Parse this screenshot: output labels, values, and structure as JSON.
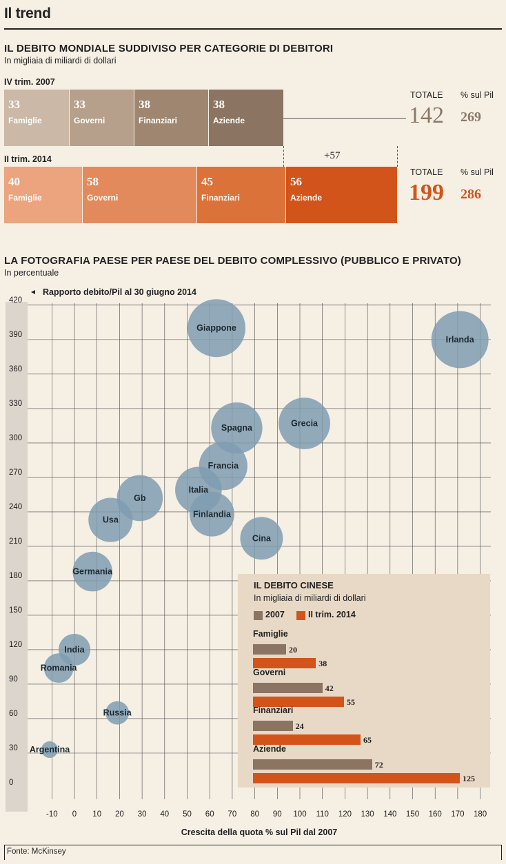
{
  "header": {
    "title": "Il trend"
  },
  "section1": {
    "title": "IL DEBITO MONDIALE SUDDIVISO PER CATEGORIE DI DEBITORI",
    "subtitle": "In migliaia di miliardi di dollari",
    "total_label": "TOTALE",
    "pil_label": "% sul Pil",
    "delta": "+57",
    "rows": [
      {
        "period": "IV trim. 2007",
        "total": "142",
        "pil": "269",
        "total_color": "#8b7868",
        "segments": [
          {
            "value": "33",
            "label": "Famiglie",
            "color": "#cbb8a6"
          },
          {
            "value": "33",
            "label": "Governi",
            "color": "#b7a08b"
          },
          {
            "value": "38",
            "label": "Finanziari",
            "color": "#9e8670"
          },
          {
            "value": "38",
            "label": "Aziende",
            "color": "#8b7462"
          }
        ]
      },
      {
        "period": "II trim. 2014",
        "total": "199",
        "pil": "286",
        "total_color": "#d2541a",
        "segments": [
          {
            "value": "40",
            "label": "Famiglie",
            "color": "#eba47e"
          },
          {
            "value": "58",
            "label": "Governi",
            "color": "#e38a5c"
          },
          {
            "value": "45",
            "label": "Finanziari",
            "color": "#db7239"
          },
          {
            "value": "56",
            "label": "Aziende",
            "color": "#d2541a"
          }
        ]
      }
    ]
  },
  "section2": {
    "title": "LA FOTOGRAFIA PAESE PER PAESE DEL DEBITO COMPLESSIVO (PUBBLICO E PRIVATO)",
    "subtitle": "In percentuale",
    "y_axis_note": "Rapporto debito/Pil al 30 giugno 2014"
  },
  "chart_data": [
    {
      "type": "scatter",
      "title": "LA FOTOGRAFIA PAESE PER PAESE DEL DEBITO COMPLESSIVO (PUBBLICO E PRIVATO)",
      "xlabel": "Crescita della quota % sul Pil dal 2007",
      "ylabel": "Rapporto debito/Pil al 30 giugno 2014",
      "xlim": [
        -15,
        185
      ],
      "ylim": [
        0,
        420
      ],
      "x_ticks": [
        -10,
        0,
        10,
        20,
        30,
        40,
        50,
        60,
        70,
        80,
        90,
        100,
        110,
        120,
        130,
        140,
        150,
        160,
        170,
        180
      ],
      "y_ticks": [
        0,
        30,
        60,
        90,
        120,
        150,
        180,
        210,
        240,
        270,
        300,
        330,
        360,
        390,
        420
      ],
      "bubble_color": "#7f9cb0",
      "points": [
        {
          "name": "Giappone",
          "x": 63,
          "y": 400,
          "size": 400
        },
        {
          "name": "Irlanda",
          "x": 171,
          "y": 390,
          "size": 390
        },
        {
          "name": "Grecia",
          "x": 102,
          "y": 317,
          "size": 317
        },
        {
          "name": "Spagna",
          "x": 72,
          "y": 313,
          "size": 313
        },
        {
          "name": "Francia",
          "x": 66,
          "y": 280,
          "size": 280
        },
        {
          "name": "Italia",
          "x": 55,
          "y": 259,
          "size": 259
        },
        {
          "name": "Finlandia",
          "x": 61,
          "y": 238,
          "size": 238
        },
        {
          "name": "Gb",
          "x": 29,
          "y": 252,
          "size": 252
        },
        {
          "name": "Usa",
          "x": 16,
          "y": 233,
          "size": 233
        },
        {
          "name": "Cina",
          "x": 83,
          "y": 217,
          "size": 217
        },
        {
          "name": "Germania",
          "x": 8,
          "y": 188,
          "size": 188
        },
        {
          "name": "India",
          "x": 0,
          "y": 120,
          "size": 120
        },
        {
          "name": "Romania",
          "x": -7,
          "y": 104,
          "size": 104
        },
        {
          "name": "Russia",
          "x": 19,
          "y": 65,
          "size": 65
        },
        {
          "name": "Argentina",
          "x": -11,
          "y": 33,
          "size": 33
        }
      ]
    },
    {
      "type": "bar",
      "title": "IL DEBITO CINESE",
      "subtitle": "In migliaia di miliardi di dollari",
      "categories": [
        "Famiglie",
        "Governi",
        "Finanziari",
        "Aziende"
      ],
      "series": [
        {
          "name": "2007",
          "color": "#8b7462",
          "values": [
            20,
            42,
            24,
            72
          ]
        },
        {
          "name": "II trim. 2014",
          "color": "#d2541a",
          "values": [
            38,
            55,
            65,
            125
          ]
        }
      ]
    }
  ],
  "footer": {
    "source": "Fonte: McKinsey"
  }
}
